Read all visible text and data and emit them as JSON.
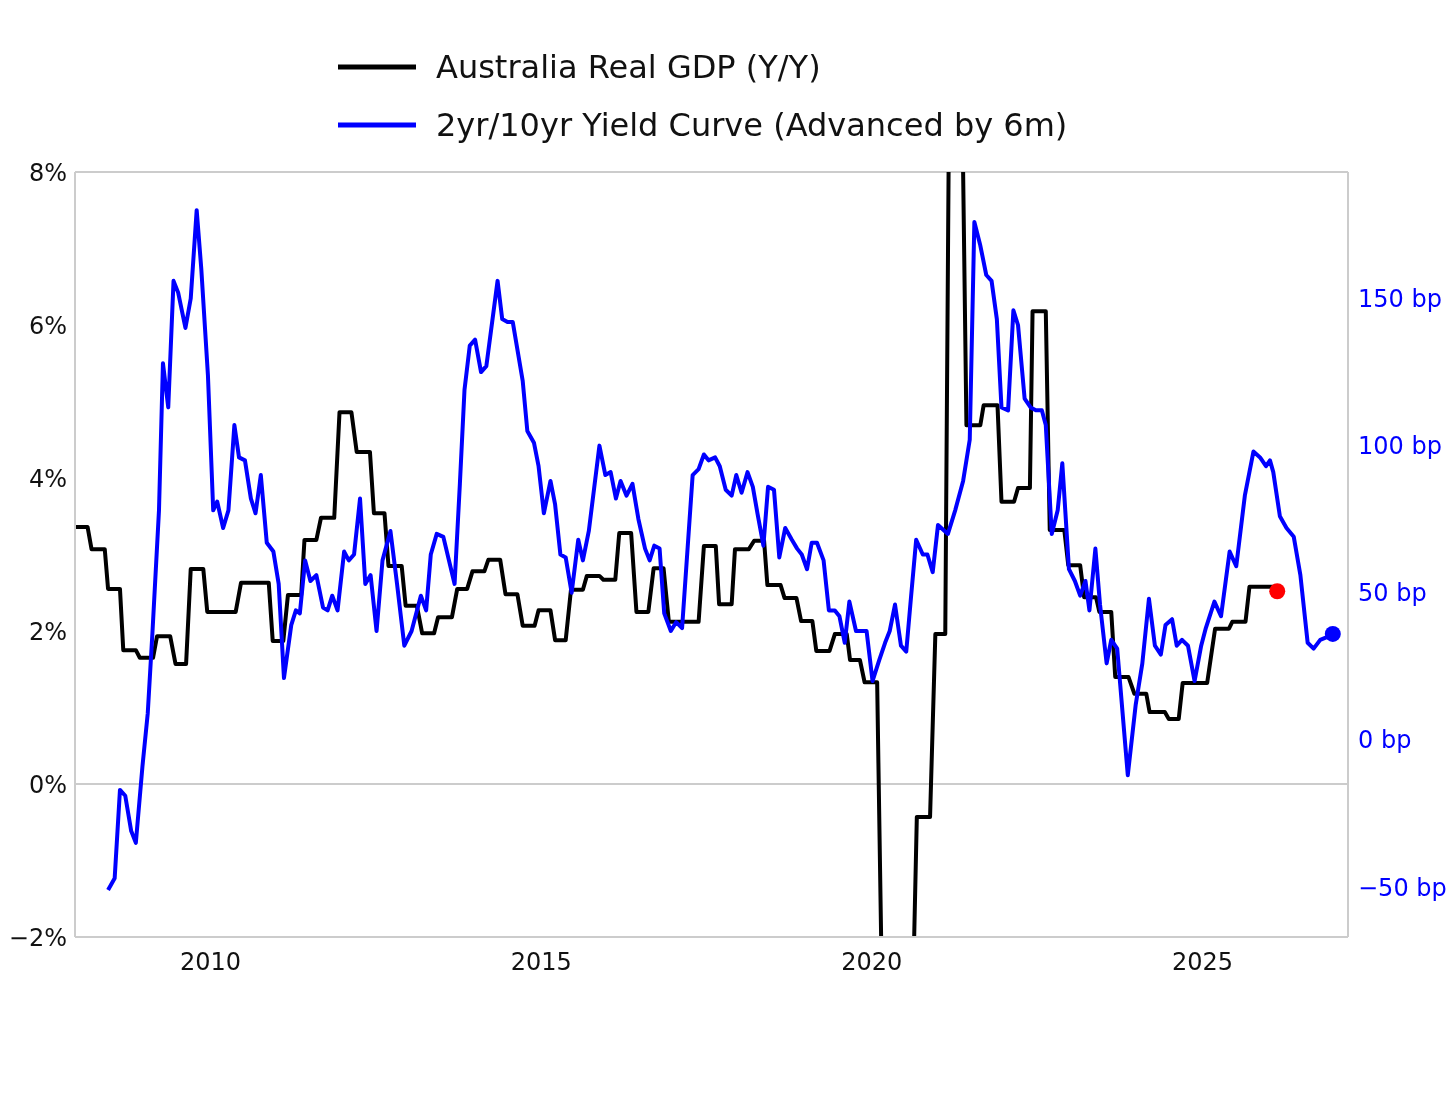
{
  "chart_data": {
    "type": "line",
    "xlim": [
      2007.95,
      2027.2
    ],
    "xticks": [
      2010,
      2015,
      2020,
      2025
    ],
    "ylim": [
      -2,
      8
    ],
    "yticks": [
      {
        "value": -2,
        "label": "−2%"
      },
      {
        "value": 0,
        "label": "0%"
      },
      {
        "value": 2,
        "label": "2%"
      },
      {
        "value": 4,
        "label": "4%"
      },
      {
        "value": 6,
        "label": "6%"
      },
      {
        "value": 8,
        "label": "8%"
      }
    ],
    "y2lim": [
      -67,
      193
    ],
    "y2ticks": [
      {
        "value": -50,
        "label": "−50 bp"
      },
      {
        "value": 0,
        "label": "0 bp"
      },
      {
        "value": 50,
        "label": "50 bp"
      },
      {
        "value": 100,
        "label": "100 bp"
      },
      {
        "value": 150,
        "label": "150 bp"
      }
    ],
    "legend": "top",
    "grid": false,
    "ref_lines": [
      {
        "axis": "y",
        "value": 0,
        "color": "#cccccc"
      }
    ],
    "series": [
      {
        "name": "Australia Real GDP (Y/Y)",
        "color": "#000000",
        "x": [
          2007.95,
          2008.14,
          2008.2,
          2008.4,
          2008.45,
          2008.63,
          2008.68,
          2008.87,
          2008.93,
          2009.13,
          2009.19,
          2009.39,
          2009.47,
          2009.63,
          2009.7,
          2009.89,
          2009.95,
          2010.38,
          2010.46,
          2010.88,
          2010.94,
          2011.1,
          2011.17,
          2011.37,
          2011.42,
          2011.6,
          2011.67,
          2011.87,
          2011.95,
          2012.13,
          2012.21,
          2012.41,
          2012.47,
          2012.63,
          2012.69,
          2012.89,
          2012.95,
          2013.12,
          2013.2,
          2013.38,
          2013.44,
          2013.65,
          2013.73,
          2013.88,
          2013.96,
          2014.14,
          2014.2,
          2014.38,
          2014.46,
          2014.64,
          2014.72,
          2014.9,
          2014.96,
          2015.14,
          2015.21,
          2015.37,
          2015.45,
          2015.63,
          2015.69,
          2015.88,
          2015.94,
          2016.12,
          2016.18,
          2016.36,
          2016.44,
          2016.62,
          2016.7,
          2016.85,
          2016.93,
          2017.38,
          2017.46,
          2017.64,
          2017.69,
          2017.88,
          2017.93,
          2018.14,
          2018.22,
          2018.37,
          2018.42,
          2018.62,
          2018.68,
          2018.86,
          2018.93,
          2019.1,
          2019.16,
          2019.36,
          2019.44,
          2019.62,
          2019.67,
          2019.82,
          2019.89,
          2020.08,
          2020.14,
          2020.39,
          2020.64,
          2020.68,
          2020.88,
          2020.96,
          2021.11,
          2021.16,
          2021.27,
          2021.38,
          2021.43,
          2021.64,
          2021.69,
          2021.9,
          2021.96,
          2022.15,
          2022.21,
          2022.39,
          2022.43,
          2022.63,
          2022.69,
          2022.91,
          2022.97,
          2023.15,
          2023.21,
          2023.39,
          2023.44,
          2023.62,
          2023.68,
          2023.88,
          2023.97,
          2024.15,
          2024.2,
          2024.43,
          2024.49,
          2024.64,
          2024.7,
          2025.07,
          2025.19,
          2025.4,
          2025.45,
          2025.65,
          2025.71,
          2026.1
        ],
        "values": [
          3.36,
          3.36,
          3.07,
          3.07,
          2.55,
          2.55,
          1.75,
          1.75,
          1.65,
          1.65,
          1.93,
          1.93,
          1.57,
          1.57,
          2.81,
          2.81,
          2.25,
          2.25,
          2.63,
          2.63,
          1.87,
          1.87,
          2.47,
          2.47,
          3.19,
          3.19,
          3.48,
          3.48,
          4.86,
          4.86,
          4.34,
          4.34,
          3.54,
          3.54,
          2.85,
          2.85,
          2.33,
          2.33,
          1.97,
          1.97,
          2.18,
          2.18,
          2.55,
          2.55,
          2.78,
          2.78,
          2.93,
          2.93,
          2.48,
          2.48,
          2.07,
          2.07,
          2.27,
          2.27,
          1.88,
          1.88,
          2.54,
          2.54,
          2.72,
          2.72,
          2.67,
          2.67,
          3.28,
          3.28,
          2.25,
          2.25,
          2.82,
          2.82,
          2.12,
          2.12,
          3.11,
          3.11,
          2.35,
          2.35,
          3.07,
          3.07,
          3.18,
          3.18,
          2.6,
          2.6,
          2.43,
          2.43,
          2.13,
          2.13,
          1.74,
          1.74,
          1.96,
          1.96,
          1.62,
          1.62,
          1.33,
          1.33,
          -2,
          null,
          -2,
          -0.43,
          -0.43,
          1.96,
          1.96,
          8,
          null,
          8,
          4.69,
          4.69,
          4.95,
          4.95,
          3.69,
          3.69,
          3.87,
          3.87,
          6.18,
          6.18,
          3.32,
          3.32,
          2.86,
          2.86,
          2.44,
          2.44,
          2.25,
          2.25,
          1.4,
          1.4,
          1.18,
          1.18,
          0.94,
          0.94,
          0.85,
          0.85,
          1.32,
          1.32,
          2.03,
          2.03,
          2.12,
          2.12,
          2.58,
          2.58
        ]
      },
      {
        "name": "2yr/10yr Yield Curve (Advanced by 6m)",
        "color": "#0000ff",
        "axis": "y2",
        "x": [
          2008.45,
          2008.55,
          2008.63,
          2008.71,
          2008.8,
          2008.87,
          2008.97,
          2009.05,
          2009.12,
          2009.22,
          2009.28,
          2009.36,
          2009.44,
          2009.51,
          2009.62,
          2009.7,
          2009.79,
          2009.86,
          2009.96,
          2010.04,
          2010.1,
          2010.19,
          2010.27,
          2010.36,
          2010.43,
          2010.52,
          2010.61,
          2010.68,
          2010.76,
          2010.85,
          2010.95,
          2011.03,
          2011.11,
          2011.22,
          2011.29,
          2011.35,
          2011.43,
          2011.51,
          2011.6,
          2011.7,
          2011.77,
          2011.84,
          2011.92,
          2012.02,
          2012.09,
          2012.17,
          2012.26,
          2012.34,
          2012.42,
          2012.51,
          2012.6,
          2012.72,
          2012.82,
          2012.93,
          2013.04,
          2013.18,
          2013.26,
          2013.33,
          2013.42,
          2013.52,
          2013.69,
          2013.77,
          2013.84,
          2013.92,
          2014.0,
          2014.09,
          2014.17,
          2014.34,
          2014.41,
          2014.49,
          2014.57,
          2014.72,
          2014.79,
          2014.89,
          2014.96,
          2015.04,
          2015.14,
          2015.21,
          2015.29,
          2015.37,
          2015.46,
          2015.56,
          2015.63,
          2015.72,
          2015.88,
          2015.97,
          2016.05,
          2016.13,
          2016.2,
          2016.29,
          2016.38,
          2016.47,
          2016.57,
          2016.64,
          2016.71,
          2016.79,
          2016.86,
          2016.96,
          2017.04,
          2017.13,
          2017.29,
          2017.38,
          2017.46,
          2017.53,
          2017.63,
          2017.7,
          2017.79,
          2017.88,
          2017.95,
          2018.03,
          2018.12,
          2018.2,
          2018.27,
          2018.36,
          2018.43,
          2018.52,
          2018.6,
          2018.69,
          2018.79,
          2018.87,
          2018.94,
          2019.02,
          2019.09,
          2019.17,
          2019.27,
          2019.35,
          2019.44,
          2019.51,
          2019.59,
          2019.66,
          2019.76,
          2019.83,
          2019.92,
          2020.01,
          2020.11,
          2020.2,
          2020.27,
          2020.35,
          2020.44,
          2020.52,
          2020.59,
          2020.67,
          2020.77,
          2020.84,
          2020.92,
          2021.0,
          2021.15,
          2021.26,
          2021.38,
          2021.48,
          2021.55,
          2021.64,
          2021.73,
          2021.81,
          2021.89,
          2021.96,
          2022.06,
          2022.14,
          2022.21,
          2022.31,
          2022.4,
          2022.48,
          2022.57,
          2022.63,
          2022.72,
          2022.81,
          2022.88,
          2022.98,
          2023.07,
          2023.15,
          2023.23,
          2023.29,
          2023.38,
          2023.45,
          2023.55,
          2023.62,
          2023.71,
          2023.87,
          2023.99,
          2024.09,
          2024.19,
          2024.28,
          2024.37,
          2024.44,
          2024.54,
          2024.61,
          2024.69,
          2024.78,
          2024.88,
          2024.98,
          2025.05,
          2025.18,
          2025.28,
          2025.41,
          2025.51,
          2025.64,
          2025.77,
          2025.87,
          2025.96,
          2026.02,
          2026.07,
          2026.17,
          2026.27,
          2026.38,
          2026.48,
          2026.59,
          2026.68,
          2026.78,
          2026.89
        ],
        "values": [
          -51,
          -47,
          -17,
          -19,
          -31,
          -35,
          -9,
          9,
          36,
          78,
          128,
          113,
          156,
          152,
          140,
          150,
          180,
          160,
          124,
          78,
          81,
          72,
          78,
          107,
          96,
          95,
          82,
          77,
          90,
          67,
          64,
          53,
          21,
          39,
          44,
          43,
          61,
          54,
          56,
          45,
          44,
          49,
          44,
          64,
          61,
          63,
          82,
          53,
          56,
          37,
          61,
          71,
          53,
          32,
          37,
          49,
          44,
          63,
          70,
          69,
          53,
          87,
          119,
          134,
          136,
          125,
          127,
          156,
          143,
          142,
          142,
          122,
          105,
          101,
          93,
          77,
          88,
          80,
          63,
          62,
          50,
          68,
          61,
          71,
          100,
          90,
          91,
          82,
          88,
          83,
          87,
          75,
          65,
          61,
          66,
          65,
          43,
          37,
          40,
          38,
          90,
          92,
          97,
          95,
          96,
          93,
          85,
          83,
          90,
          84,
          91,
          86,
          77,
          66,
          86,
          85,
          62,
          72,
          68,
          65,
          63,
          58,
          67,
          67,
          61,
          44,
          44,
          42,
          33,
          47,
          37,
          37,
          37,
          20,
          27,
          33,
          37,
          46,
          32,
          30,
          48,
          68,
          63,
          63,
          57,
          73,
          70,
          78,
          88,
          102,
          176,
          168,
          158,
          156,
          143,
          113,
          112,
          146,
          141,
          116,
          113,
          112,
          112,
          107,
          70,
          78,
          94,
          58,
          54,
          49,
          54,
          44,
          65,
          46,
          26,
          34,
          31,
          -12,
          12,
          26,
          48,
          32,
          29,
          39,
          41,
          32,
          34,
          32,
          20,
          32,
          38,
          47,
          42,
          64,
          59,
          83,
          98,
          96,
          93,
          95,
          91,
          76,
          72,
          69,
          56,
          33,
          31,
          34,
          35
        ]
      },
      {
        "type": "scatter",
        "color": "#ff0000",
        "x": [
          2026.13
        ],
        "values": [
          2.52
        ]
      },
      {
        "type": "scatter",
        "color": "#0000ff",
        "axis": "y2",
        "x": [
          2026.97
        ],
        "values": [
          36
        ]
      }
    ]
  }
}
